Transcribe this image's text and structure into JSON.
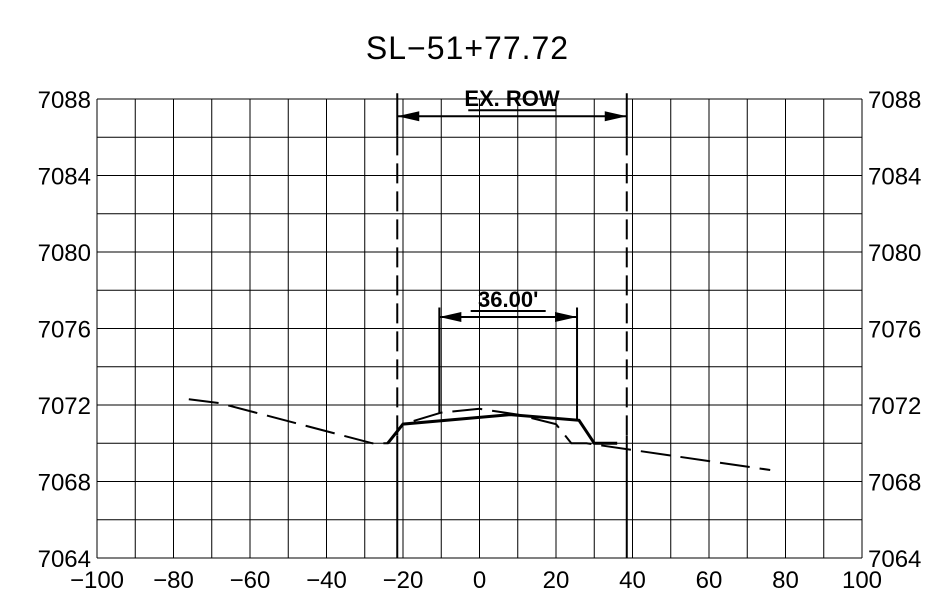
{
  "title": "SL−51+77.72",
  "chart_data": {
    "type": "line",
    "title": "SL−51+77.72",
    "xlim": [
      -100,
      100
    ],
    "ylim": [
      7064,
      7088
    ],
    "x_ticks": [
      -100,
      -80,
      -60,
      -40,
      -20,
      0,
      20,
      40,
      60,
      80,
      100
    ],
    "x_tick_labels": [
      "−100",
      "−80",
      "−60",
      "−40",
      "−20",
      "0",
      "20",
      "40",
      "60",
      "80",
      "100"
    ],
    "y_ticks": [
      7088,
      7084,
      7080,
      7076,
      7072,
      7068,
      7064
    ],
    "grid": true,
    "series": [
      {
        "style": "dashed",
        "points": [
          [
            -76,
            7072.3
          ],
          [
            -68,
            7072.1
          ],
          [
            -28,
            7070.0
          ],
          [
            -24,
            7070.0
          ],
          [
            -20,
            7071.0
          ],
          [
            -10,
            7071.6
          ],
          [
            0,
            7071.8
          ],
          [
            10,
            7071.5
          ],
          [
            20,
            7071.0
          ],
          [
            24,
            7070.0
          ],
          [
            28,
            7070.0
          ],
          [
            76,
            7068.6
          ]
        ]
      },
      {
        "style": "solid",
        "points": [
          [
            -24,
            7070.0
          ],
          [
            -20,
            7071.0
          ],
          [
            8,
            7071.5
          ],
          [
            26,
            7071.2
          ],
          [
            30,
            7070.0
          ],
          [
            36,
            7070.0
          ]
        ]
      }
    ],
    "annotations": [
      {
        "text": "EX. ROW",
        "x_from": -21.5,
        "x_to": 38.5,
        "y": 7087.1
      },
      {
        "text": "36.00'",
        "x_from": -10.5,
        "x_to": 25.5,
        "y": 7076.6
      }
    ],
    "row_lines": [
      -21.5,
      38.5
    ]
  }
}
